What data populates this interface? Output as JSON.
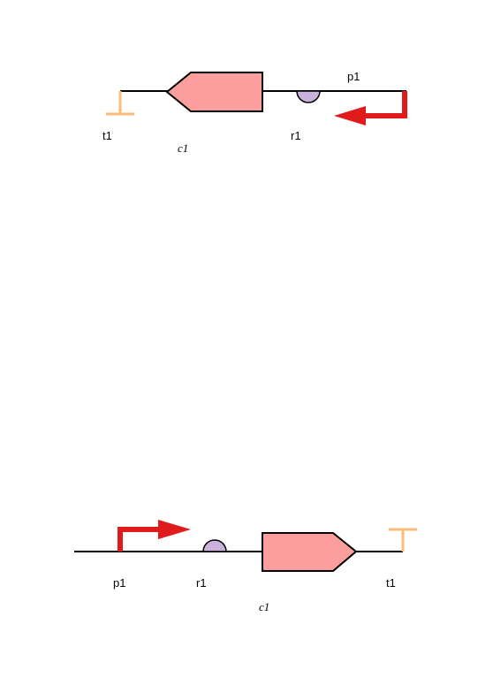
{
  "colors": {
    "background": "#ffffff",
    "backbone": "#000000",
    "cds_fill": "#fd9e9e",
    "cds_stroke": "#000000",
    "rbs_fill": "#cbb2dc",
    "terminator": "#f8bc78",
    "promoter": "#e01b1b"
  },
  "diagrams": [
    {
      "orientation": "reverse",
      "parts": {
        "terminator": "t1",
        "cds": "c1",
        "rbs": "r1",
        "promoter": "p1"
      }
    },
    {
      "orientation": "forward",
      "parts": {
        "promoter": "p1",
        "rbs": "r1",
        "cds": "c1",
        "terminator": "t1"
      }
    }
  ]
}
